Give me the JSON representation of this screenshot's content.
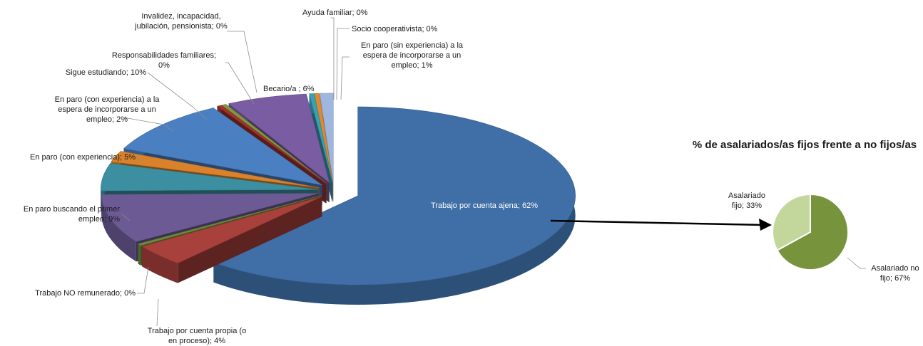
{
  "chart_data": [
    {
      "type": "pie",
      "title": "",
      "slices": [
        {
          "label": "Trabajo por cuenta ajena",
          "value": 62,
          "display": "Trabajo por cuenta ajena; 62%",
          "color": "#3f6fa6"
        },
        {
          "label": "Trabajo por cuenta propia (o en proceso)",
          "value": 4,
          "display": "Trabajo por cuenta propia (o en proceso); 4%",
          "color": "#a8403c"
        },
        {
          "label": "Trabajo NO remunerado",
          "value": 0,
          "display": "Trabajo NO remunerado; 0%",
          "color": "#6e8a3a"
        },
        {
          "label": "En paro buscando el primer empleo",
          "value": 9,
          "display": "En paro  buscando el primer empleo; 9%",
          "color": "#6c5a94"
        },
        {
          "label": "En paro (con experiencia)",
          "value": 5,
          "display": "En paro (con experiencia); 5%",
          "color": "#3b8fa0"
        },
        {
          "label": "En paro (con experiencia) a la espera de incorporarse a un empleo",
          "value": 2,
          "display": "En paro (con experiencia) a la espera de incorporarse a un empleo; 2%",
          "color": "#d9822b"
        },
        {
          "label": "Sigue estudiando",
          "value": 10,
          "display": "Sigue estudiando; 10%",
          "color": "#4a7fc1"
        },
        {
          "label": "Responsabilidades familiares",
          "value": 0,
          "display": "Responsabilidades familiares; 0%",
          "color": "#a0332f"
        },
        {
          "label": "Invalidez, incapacidad, jubilación, pensionista",
          "value": 0,
          "display": "Invalidez, incapacidad, jubilación, pensionista; 0%",
          "color": "#7d9a3e"
        },
        {
          "label": "Becario/a",
          "value": 6,
          "display": "Becario/a ; 6%",
          "color": "#7a5ca3"
        },
        {
          "label": "Ayuda familiar",
          "value": 0,
          "display": "Ayuda familiar; 0%",
          "color": "#3aa0b4"
        },
        {
          "label": "Socio cooperativista",
          "value": 0,
          "display": "Socio cooperativista; 0%",
          "color": "#e08a30"
        },
        {
          "label": "En paro (sin experiencia) a la espera de incorporarse a un empleo",
          "value": 1,
          "display": "En paro (sin experiencia) a la espera de incorporarse a un empleo; 1%",
          "color": "#9fb6de"
        }
      ]
    },
    {
      "type": "pie",
      "title": "% de asalariados/as fijos frente a no fijos/as",
      "slices": [
        {
          "label": "Asalariado fijo",
          "value": 33,
          "display": "Asalariado fijo; 33%",
          "color": "#c3d69b"
        },
        {
          "label": "Asalariado no fijo",
          "value": 67,
          "display": "Asalariado no fijo; 67%",
          "color": "#77933c"
        }
      ]
    }
  ]
}
